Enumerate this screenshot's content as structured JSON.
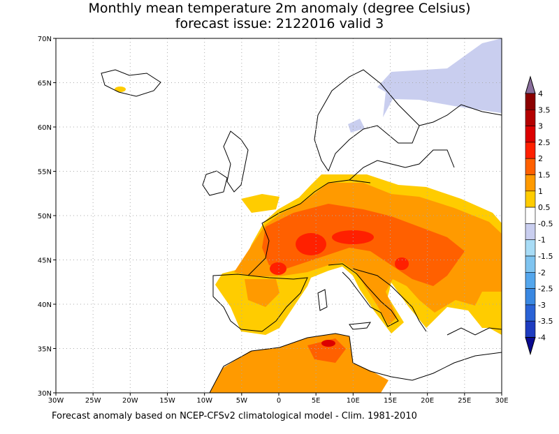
{
  "title": [
    "Monthly mean temperature 2m anomaly (degree Celsius)",
    "forecast issue: 2122016 valid 3"
  ],
  "lat_labels": [
    "70N",
    "65N",
    "60N",
    "55N",
    "50N",
    "45N",
    "40N",
    "35N",
    "30N"
  ],
  "lon_labels": [
    "30W",
    "25W",
    "20W",
    "15W",
    "10W",
    "5W",
    "0",
    "5E",
    "10E",
    "15E",
    "20E",
    "25E",
    "30E"
  ],
  "colorbar": {
    "labels": [
      "4",
      "3.5",
      "3",
      "2.5",
      "2",
      "1.5",
      "1",
      "0.5",
      "-0.5",
      "-1",
      "-1.5",
      "-2",
      "-2.5",
      "-3",
      "-3.5",
      "-4"
    ],
    "colors": [
      "#8a6e9c",
      "#8b0000",
      "#b40000",
      "#dc0000",
      "#ff2000",
      "#ff6000",
      "#ff9a00",
      "#ffcc00",
      "#ffffff",
      "#c9ceef",
      "#a8dcf6",
      "#7fc4f0",
      "#54a6ec",
      "#3a88e2",
      "#2a62d6",
      "#1e3cc0",
      "#0a0a90"
    ]
  },
  "footer": "Forecast anomaly based on NCEP-CFSv2 climatological model - Clim. 1981-2010"
}
